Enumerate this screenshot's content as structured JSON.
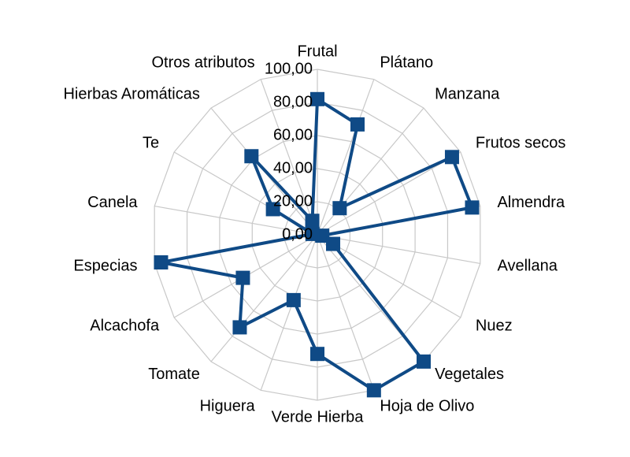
{
  "chart_data": {
    "type": "radar",
    "categories": [
      "Frutal",
      "Plátano",
      "Manzana",
      "Frutos secos",
      "Almendra",
      "Avellana",
      "Nuez",
      "Vegetales",
      "Hoja de Olivo",
      "Verde Hierba",
      "Higuera",
      "Tomate",
      "Alcachofa",
      "Especias",
      "Canela",
      "Te",
      "Hierbas Aromáticas",
      "Otros atributos"
    ],
    "series": [
      {
        "color": "#0f4a86",
        "values": [
          82,
          71,
          21,
          94,
          95,
          3,
          11,
          100,
          100,
          72,
          42,
          73,
          52,
          96,
          3,
          31,
          62,
          9
        ]
      }
    ],
    "ylim": [
      0,
      100
    ],
    "yticks": [
      {
        "value": 0,
        "label": "0,00"
      },
      {
        "value": 20,
        "label": "20,00"
      },
      {
        "value": 40,
        "label": "40,00"
      },
      {
        "value": 60,
        "label": "60,00"
      },
      {
        "value": 80,
        "label": "80,00"
      },
      {
        "value": 100,
        "label": "100,00"
      }
    ],
    "grid": true
  }
}
